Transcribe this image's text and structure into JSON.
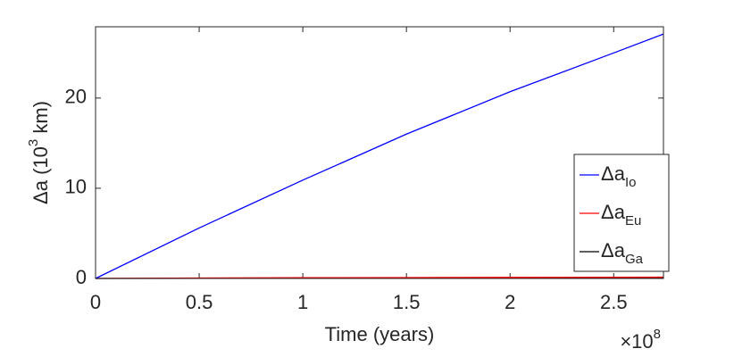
{
  "chart_data": {
    "type": "line",
    "x_label": "Time (years)",
    "x_multiplier": {
      "base": "×10",
      "exponent": "8"
    },
    "y_label": {
      "text": "Δa (10",
      "sup": "3",
      "suffix": " km)"
    },
    "x": [
      0,
      0.5,
      1,
      1.5,
      2,
      2.5,
      2.74
    ],
    "series": [
      {
        "name": "Δa",
        "subscript": "Io",
        "color": "#0000ff",
        "values": [
          0,
          5.6,
          10.9,
          16.0,
          20.7,
          25.0,
          27.1
        ]
      },
      {
        "name": "Δa",
        "subscript": "Eu",
        "color": "#ff0000",
        "values": [
          0,
          0.05,
          0.08,
          0.1,
          0.12,
          0.13,
          0.14
        ]
      },
      {
        "name": "Δa",
        "subscript": "Ga",
        "color": "#000000",
        "values": [
          0,
          0.01,
          0.02,
          0.02,
          0.03,
          0.03,
          0.03
        ]
      }
    ],
    "xlim": [
      0,
      2.74
    ],
    "ylim": [
      0,
      27.9
    ],
    "xticks": [
      0,
      0.5,
      1,
      1.5,
      2,
      2.5
    ],
    "yticks": [
      0,
      10,
      20
    ],
    "legend": "lower-right"
  }
}
